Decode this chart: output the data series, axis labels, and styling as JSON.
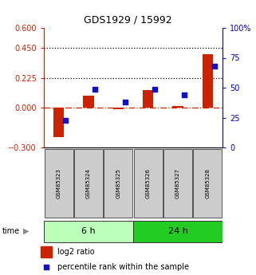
{
  "title": "GDS1929 / 15992",
  "samples": [
    "GSM85323",
    "GSM85324",
    "GSM85325",
    "GSM85326",
    "GSM85327",
    "GSM85328"
  ],
  "log2_ratio": [
    -0.22,
    0.09,
    -0.01,
    0.13,
    0.01,
    0.4
  ],
  "percentile_rank": [
    23,
    49,
    38,
    49,
    44,
    68
  ],
  "groups": [
    {
      "label": "6 h",
      "indices": [
        0,
        1,
        2
      ],
      "color": "#aaffaa"
    },
    {
      "label": "24 h",
      "indices": [
        3,
        4,
        5
      ],
      "color": "#33cc33"
    }
  ],
  "ylim_left": [
    -0.3,
    0.6
  ],
  "ylim_right": [
    0,
    100
  ],
  "yticks_left": [
    -0.3,
    0,
    0.225,
    0.45,
    0.6
  ],
  "yticks_right": [
    0,
    25,
    50,
    75,
    100
  ],
  "hlines": [
    0.45,
    0.225
  ],
  "bar_color_red": "#cc2200",
  "bar_color_blue": "#1111cc",
  "zero_line_color": "#cc2200",
  "bg_color": "#ffffff",
  "tick_color_left": "#cc2200",
  "tick_color_right": "#0000cc",
  "bar_width": 0.35,
  "legend_labels": [
    "log2 ratio",
    "percentile rank within the sample"
  ],
  "group_light_color": "#bbffbb",
  "group_dark_color": "#22cc22"
}
